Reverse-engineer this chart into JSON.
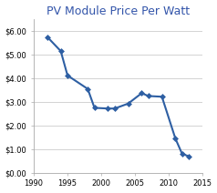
{
  "title": "PV Module Price Per Watt",
  "title_color": "#3355AA",
  "title_fontsize": 9.0,
  "x_data": [
    1992,
    1994,
    1995,
    1998,
    1999,
    2001,
    2002,
    2004,
    2006,
    2007,
    2009,
    2011,
    2012,
    2013
  ],
  "y_data": [
    5.75,
    5.15,
    4.12,
    3.55,
    2.75,
    2.72,
    2.72,
    2.93,
    3.37,
    3.25,
    3.22,
    1.45,
    0.8,
    0.7
  ],
  "line_color": "#2E5FA3",
  "marker": "D",
  "marker_size": 3.0,
  "xlim": [
    1990,
    2015
  ],
  "ylim": [
    0.0,
    6.5
  ],
  "xticks": [
    1990,
    1995,
    2000,
    2005,
    2010,
    2015
  ],
  "yticks": [
    0.0,
    1.0,
    2.0,
    3.0,
    4.0,
    5.0,
    6.0
  ],
  "ytick_labels": [
    "$0.00",
    "$1.00",
    "$2.00",
    "$3.00",
    "$4.00",
    "$5.00",
    "$6.00"
  ],
  "bg_color": "#FFFFFF",
  "plot_bg_color": "#FFFFFF",
  "grid_color": "#CCCCCC",
  "border_color": "#AAAAAA",
  "tick_fontsize": 6.0,
  "line_width": 1.5
}
